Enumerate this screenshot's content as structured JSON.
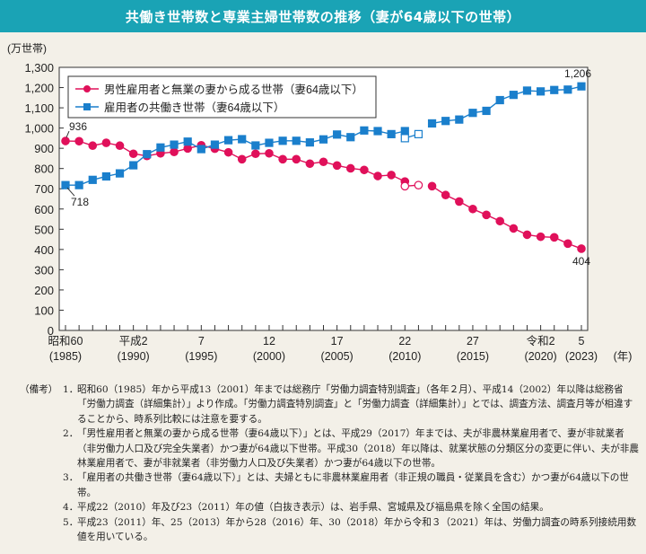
{
  "title": "共働き世帯数と専業主婦世帯数の推移（妻が64歳以下の世帯）",
  "chart_data": {
    "type": "line",
    "ylabel": "(万世帯)",
    "xlabel": "(年)",
    "ylim": [
      0,
      1300
    ],
    "yticks": [
      "0",
      "100",
      "200",
      "300",
      "400",
      "500",
      "600",
      "700",
      "800",
      "900",
      "1,000",
      "1,100",
      "1,200",
      "1,300"
    ],
    "xlim": [
      1985,
      2023
    ],
    "xticks": [
      {
        "year": 1985,
        "era": "昭和60",
        "west": "(1985)"
      },
      {
        "year": 1990,
        "era": "平成2",
        "west": "(1990)"
      },
      {
        "year": 1995,
        "era": "7",
        "west": "(1995)"
      },
      {
        "year": 2000,
        "era": "12",
        "west": "(2000)"
      },
      {
        "year": 2005,
        "era": "17",
        "west": "(2005)"
      },
      {
        "year": 2010,
        "era": "22",
        "west": "(2010)"
      },
      {
        "year": 2015,
        "era": "27",
        "west": "(2015)"
      },
      {
        "year": 2020,
        "era": "令和2",
        "west": "(2020)"
      },
      {
        "year": 2023,
        "era": "5",
        "west": "(2023)"
      }
    ],
    "legend_position": "top-left",
    "series": [
      {
        "name": "男性雇用者と無業の妻から成る世帯（妻64歳以下）",
        "color": "#e0105a",
        "marker": "circle",
        "segments": [
          {
            "x": [
              1985,
              1986,
              1987,
              1988,
              1989,
              1990,
              1991,
              1992,
              1993,
              1994,
              1995,
              1996,
              1997,
              1998,
              1999,
              2000,
              2001,
              2002,
              2003,
              2004,
              2005,
              2006,
              2007,
              2008,
              2009,
              2010
            ],
            "y": [
              936,
              935,
              913,
              927,
              913,
              873,
              862,
              875,
              882,
              899,
              915,
              898,
              880,
              846,
              873,
              875,
              846,
              846,
              824,
              833,
              815,
              801,
              793,
              763,
              768,
              736
            ],
            "open": false
          },
          {
            "x": [
              2010,
              2011
            ],
            "y": [
              713,
              718
            ],
            "open": true
          },
          {
            "x": [
              2012,
              2013,
              2014,
              2015,
              2016,
              2017,
              2018,
              2019,
              2020,
              2021,
              2022,
              2023
            ],
            "y": [
              713,
              669,
              637,
              600,
              571,
              540,
              504,
              473,
              463,
              460,
              429,
              404
            ],
            "open": false
          }
        ],
        "labels": [
          {
            "x": 1985,
            "text": "936"
          },
          {
            "x": 2023,
            "text": "404"
          }
        ]
      },
      {
        "name": "雇用者の共働き世帯（妻64歳以下）",
        "color": "#1a7fcc",
        "marker": "square",
        "segments": [
          {
            "x": [
              1985,
              1986,
              1987,
              1988,
              1989,
              1990,
              1991,
              1992,
              1993,
              1994,
              1995,
              1996,
              1997,
              1998,
              1999,
              2000,
              2001,
              2002,
              2003,
              2004,
              2005,
              2006,
              2007,
              2008,
              2009,
              2010
            ],
            "y": [
              718,
              718,
              744,
              761,
              776,
              816,
              871,
              904,
              918,
              933,
              896,
              918,
              940,
              945,
              914,
              927,
              937,
              937,
              929,
              944,
              968,
              955,
              988,
              985,
              970,
              985
            ],
            "open": false
          },
          {
            "x": [
              2010,
              2011
            ],
            "y": [
              950,
              970
            ],
            "open": true
          },
          {
            "x": [
              2012,
              2013,
              2014,
              2015,
              2016,
              2017,
              2018,
              2019,
              2020,
              2021,
              2022,
              2023
            ],
            "y": [
              1023,
              1035,
              1042,
              1075,
              1085,
              1138,
              1164,
              1185,
              1181,
              1188,
              1190,
              1206
            ],
            "open": false
          }
        ],
        "labels": [
          {
            "x": 1985,
            "text": "718"
          },
          {
            "x": 2023,
            "text": "1,206"
          }
        ]
      }
    ]
  },
  "notes": {
    "head": "（備考）",
    "items": [
      {
        "num": "1．",
        "text": "昭和60（1985）年から平成13（2001）年までは総務庁「労働力調査特別調査」（各年２月）、平成14（2002）年以降は総務省「労働力調査（詳細集計）」より作成。「労働力調査特別調査」と「労働力調査（詳細集計）」とでは、調査方法、調査月等が相違することから、時系列比較には注意を要する。"
      },
      {
        "num": "2．",
        "text": "「男性雇用者と無業の妻から成る世帯（妻64歳以下）」とは、平成29（2017）年までは、夫が非農林業雇用者で、妻が非就業者（非労働力人口及び完全失業者）かつ妻が64歳以下世帯。平成30（2018）年以降は、就業状態の分類区分の変更に伴い、夫が非農林業雇用者で、妻が非就業者（非労働力人口及び失業者）かつ妻が64歳以下の世帯。"
      },
      {
        "num": "3．",
        "text": "「雇用者の共働き世帯（妻64歳以下）」とは、夫婦ともに非農林業雇用者（非正規の職員・従業員を含む）かつ妻が64歳以下の世帯。"
      },
      {
        "num": "4．",
        "text": "平成22（2010）年及び23（2011）年の値（白抜き表示）は、岩手県、宮城県及び福島県を除く全国の結果。"
      },
      {
        "num": "5．",
        "text": "平成23（2011）年、25（2013）年から28（2016）年、30（2018）年から令和３（2021）年は、労働力調査の時系列接続用数値を用いている。"
      }
    ]
  }
}
